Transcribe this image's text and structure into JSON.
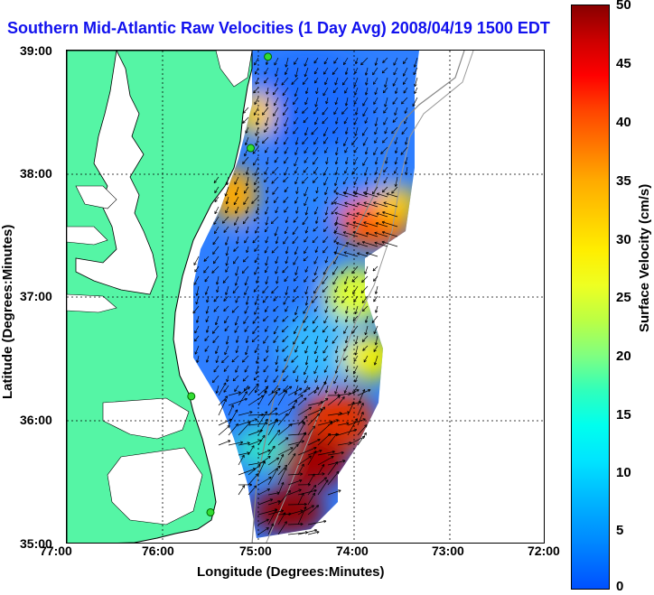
{
  "title": "Southern Mid-Atlantic Raw Velocities (1 Day Avg) 2008/04/19 1500 EDT",
  "xlabel": "Longitude (Degrees:Minutes)",
  "ylabel": "Latitude (Degrees:Minutes)",
  "x_ticks": [
    "77:00",
    "76:00",
    "75:00",
    "74:00",
    "73:00",
    "72:00"
  ],
  "y_ticks": [
    "39:00",
    "38:00",
    "37:00",
    "36:00",
    "35:00"
  ],
  "colorbar": {
    "label": "Surface Velocity (cm/s)",
    "ticks": [
      "50",
      "45",
      "40",
      "35",
      "30",
      "25",
      "20",
      "15",
      "10",
      "5",
      "0"
    ],
    "range": [
      0,
      50
    ],
    "colormap": "jet"
  },
  "map": {
    "lon_range": [
      -77,
      -72
    ],
    "lat_range": [
      35,
      39
    ],
    "grid": true,
    "land_color": "#55f5a5",
    "water_color": "#ffffff",
    "field_description_colors": {
      "low": "#1e78ff",
      "mid": "#33ccee",
      "high": "#cc1a00",
      "max": "#8b0000"
    },
    "radar_sites": [
      {
        "lon": -74.9,
        "lat": 38.95
      },
      {
        "lon": -75.08,
        "lat": 38.21
      },
      {
        "lon": -75.7,
        "lat": 36.2
      },
      {
        "lon": -75.5,
        "lat": 35.26
      }
    ]
  }
}
